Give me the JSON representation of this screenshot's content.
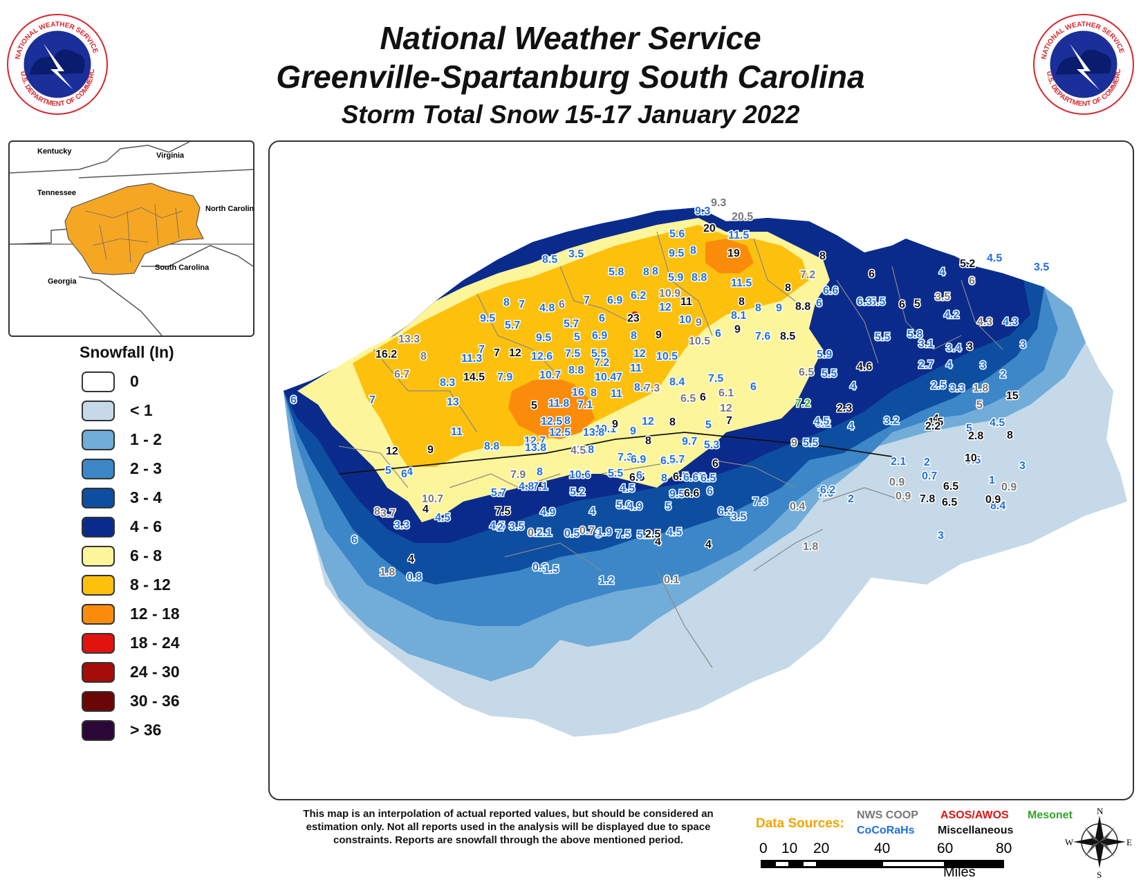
{
  "header": {
    "title_line1": "National Weather Service",
    "title_line2": "Greenville-Spartanburg South Carolina",
    "title_line3": "Storm Total Snow 15-17 January 2022"
  },
  "logo": {
    "text_top": "NATIONAL WEATHER SERVICE",
    "text_bottom": "U.S. DEPARTMENT OF COMMERCE",
    "icon": "nws-logo"
  },
  "inset_map": {
    "labels": [
      "Kentucky",
      "Virginia",
      "Tennessee",
      "North Carolina",
      "South Carolina",
      "Georgia"
    ],
    "highlight_color": "#f5a623"
  },
  "legend": {
    "title": "Snowfall (In)",
    "items": [
      {
        "label": "0",
        "color": "#ffffff"
      },
      {
        "label": "< 1",
        "color": "#c5d9e8"
      },
      {
        "label": "1 - 2",
        "color": "#72acd8"
      },
      {
        "label": "2 - 3",
        "color": "#3d87c8"
      },
      {
        "label": "3 - 4",
        "color": "#0d4ea0"
      },
      {
        "label": "4 - 6",
        "color": "#0b2b8c"
      },
      {
        "label": "6 - 8",
        "color": "#fdf59a"
      },
      {
        "label": "8 - 12",
        "color": "#fdc10d"
      },
      {
        "label": "12 - 18",
        "color": "#fb8c0b"
      },
      {
        "label": "18 - 24",
        "color": "#e0130f"
      },
      {
        "label": "24 - 30",
        "color": "#a40d0a"
      },
      {
        "label": "30 - 36",
        "color": "#6a0606"
      },
      {
        "label": "> 36",
        "color": "#2b0738"
      }
    ]
  },
  "map": {
    "report_colors": {
      "coop": "#777777",
      "cocorahs": "#1f6fe0",
      "asos": "#e0130f",
      "mesonet": "#2fa52a",
      "misc": "#111111"
    },
    "reports": [
      {
        "v": "9.3",
        "t": "coop"
      },
      {
        "v": "9.3",
        "t": "cocorahs"
      },
      {
        "v": "20.5",
        "t": "coop"
      },
      {
        "v": "20",
        "t": "misc"
      },
      {
        "v": "11.5",
        "t": "cocorahs"
      },
      {
        "v": "5.6",
        "t": "cocorahs"
      },
      {
        "v": "19",
        "t": "misc"
      },
      {
        "v": "9.5",
        "t": "cocorahs"
      },
      {
        "v": "8",
        "t": "cocorahs"
      },
      {
        "v": "8",
        "t": "cocorahs"
      },
      {
        "v": "3.5",
        "t": "cocorahs"
      },
      {
        "v": "8.5",
        "t": "cocorahs"
      },
      {
        "v": "8",
        "t": "misc"
      },
      {
        "v": "7.2",
        "t": "coop"
      },
      {
        "v": "6",
        "t": "misc"
      },
      {
        "v": "5.2",
        "t": "misc"
      },
      {
        "v": "4.5",
        "t": "cocorahs"
      },
      {
        "v": "3.5",
        "t": "cocorahs"
      },
      {
        "v": "4",
        "t": "cocorahs"
      },
      {
        "v": "5.8",
        "t": "cocorahs"
      },
      {
        "v": "8",
        "t": "cocorahs"
      },
      {
        "v": "5.9",
        "t": "cocorahs"
      },
      {
        "v": "8.8",
        "t": "cocorahs"
      },
      {
        "v": "11.5",
        "t": "cocorahs"
      },
      {
        "v": "8",
        "t": "misc"
      },
      {
        "v": "5.5",
        "t": "cocorahs"
      },
      {
        "v": "6",
        "t": "coop"
      },
      {
        "v": "6.6",
        "t": "cocorahs"
      },
      {
        "v": "6.2",
        "t": "cocorahs"
      },
      {
        "v": "10.9",
        "t": "coop"
      },
      {
        "v": "11",
        "t": "misc"
      },
      {
        "v": "8",
        "t": "misc"
      },
      {
        "v": "8",
        "t": "cocorahs"
      },
      {
        "v": "9",
        "t": "cocorahs"
      },
      {
        "v": "8.8",
        "t": "misc"
      },
      {
        "v": "6",
        "t": "cocorahs"
      },
      {
        "v": "6.3",
        "t": "cocorahs"
      },
      {
        "v": "6",
        "t": "misc"
      },
      {
        "v": "5",
        "t": "misc"
      },
      {
        "v": "3.5",
        "t": "coop"
      },
      {
        "v": "8",
        "t": "cocorahs"
      },
      {
        "v": "7",
        "t": "cocorahs"
      },
      {
        "v": "4.8",
        "t": "cocorahs"
      },
      {
        "v": "6",
        "t": "coop"
      },
      {
        "v": "7",
        "t": "cocorahs"
      },
      {
        "v": "6.9",
        "t": "cocorahs"
      },
      {
        "v": "12",
        "t": "cocorahs"
      },
      {
        "v": "23",
        "t": "misc"
      },
      {
        "v": "10",
        "t": "cocorahs"
      },
      {
        "v": "9",
        "t": "coop"
      },
      {
        "v": "8.1",
        "t": "cocorahs"
      },
      {
        "v": "4.2",
        "t": "cocorahs"
      },
      {
        "v": "4.3",
        "t": "coop"
      },
      {
        "v": "4.3",
        "t": "cocorahs"
      },
      {
        "v": "9.5",
        "t": "cocorahs"
      },
      {
        "v": "5.7",
        "t": "cocorahs"
      },
      {
        "v": "5.7",
        "t": "cocorahs"
      },
      {
        "v": "6",
        "t": "cocorahs"
      },
      {
        "v": "9",
        "t": "misc"
      },
      {
        "v": "6",
        "t": "cocorahs"
      },
      {
        "v": "9",
        "t": "misc"
      },
      {
        "v": "7.6",
        "t": "cocorahs"
      },
      {
        "v": "8.5",
        "t": "misc"
      },
      {
        "v": "5.5",
        "t": "cocorahs"
      },
      {
        "v": "5.8",
        "t": "cocorahs"
      },
      {
        "v": "3.1",
        "t": "cocorahs"
      },
      {
        "v": "3.4",
        "t": "cocorahs"
      },
      {
        "v": "3",
        "t": "misc"
      },
      {
        "v": "3",
        "t": "cocorahs"
      },
      {
        "v": "13.3",
        "t": "coop"
      },
      {
        "v": "8",
        "t": "coop"
      },
      {
        "v": "9.5",
        "t": "cocorahs"
      },
      {
        "v": "5",
        "t": "cocorahs"
      },
      {
        "v": "6.9",
        "t": "cocorahs"
      },
      {
        "v": "8",
        "t": "cocorahs"
      },
      {
        "v": "10.5",
        "t": "coop"
      },
      {
        "v": "16.2",
        "t": "misc"
      },
      {
        "v": "11.3",
        "t": "cocorahs"
      },
      {
        "v": "7",
        "t": "cocorahs"
      },
      {
        "v": "7",
        "t": "misc"
      },
      {
        "v": "12",
        "t": "misc"
      },
      {
        "v": "12.6",
        "t": "cocorahs"
      },
      {
        "v": "7.5",
        "t": "cocorahs"
      },
      {
        "v": "5.5",
        "t": "cocorahs"
      },
      {
        "v": "12",
        "t": "cocorahs"
      },
      {
        "v": "10.5",
        "t": "cocorahs"
      },
      {
        "v": "5.9",
        "t": "cocorahs"
      },
      {
        "v": "4.6",
        "t": "misc"
      },
      {
        "v": "2.7",
        "t": "cocorahs"
      },
      {
        "v": "4",
        "t": "cocorahs"
      },
      {
        "v": "3",
        "t": "cocorahs"
      },
      {
        "v": "2",
        "t": "cocorahs"
      },
      {
        "v": "6.7",
        "t": "coop"
      },
      {
        "v": "7.2",
        "t": "cocorahs"
      },
      {
        "v": "11",
        "t": "cocorahs"
      },
      {
        "v": "6.5",
        "t": "coop"
      },
      {
        "v": "5.5",
        "t": "cocorahs"
      },
      {
        "v": "14.5",
        "t": "misc"
      },
      {
        "v": "7.9",
        "t": "cocorahs"
      },
      {
        "v": "10.7",
        "t": "cocorahs"
      },
      {
        "v": "8.8",
        "t": "cocorahs"
      },
      {
        "v": "10.4",
        "t": "cocorahs"
      },
      {
        "v": "7",
        "t": "cocorahs"
      },
      {
        "v": "7.5",
        "t": "cocorahs"
      },
      {
        "v": "6",
        "t": "cocorahs"
      },
      {
        "v": "4",
        "t": "cocorahs"
      },
      {
        "v": "2.5",
        "t": "cocorahs"
      },
      {
        "v": "3.3",
        "t": "cocorahs"
      },
      {
        "v": "1.8",
        "t": "coop"
      },
      {
        "v": "15",
        "t": "misc"
      },
      {
        "v": "6",
        "t": "cocorahs"
      },
      {
        "v": "7",
        "t": "cocorahs"
      },
      {
        "v": "8.3",
        "t": "cocorahs"
      },
      {
        "v": "16",
        "t": "cocorahs"
      },
      {
        "v": "8",
        "t": "cocorahs"
      },
      {
        "v": "11",
        "t": "cocorahs"
      },
      {
        "v": "8.4",
        "t": "cocorahs"
      },
      {
        "v": "7.3",
        "t": "coop"
      },
      {
        "v": "8.4",
        "t": "cocorahs"
      },
      {
        "v": "6.5",
        "t": "coop"
      },
      {
        "v": "6",
        "t": "misc"
      },
      {
        "v": "6.1",
        "t": "coop"
      },
      {
        "v": "7.2",
        "t": "mesonet"
      },
      {
        "v": "2.3",
        "t": "misc"
      },
      {
        "v": "5",
        "t": "coop"
      },
      {
        "v": "13",
        "t": "cocorahs"
      },
      {
        "v": "11.8",
        "t": "cocorahs"
      },
      {
        "v": "7.1",
        "t": "cocorahs"
      },
      {
        "v": "5",
        "t": "misc"
      },
      {
        "v": "12",
        "t": "coop"
      },
      {
        "v": "12.5",
        "t": "cocorahs"
      },
      {
        "v": "8",
        "t": "cocorahs"
      },
      {
        "v": "10.1",
        "t": "cocorahs"
      },
      {
        "v": "9",
        "t": "misc"
      },
      {
        "v": "12",
        "t": "cocorahs"
      },
      {
        "v": "8",
        "t": "misc"
      },
      {
        "v": "5",
        "t": "cocorahs"
      },
      {
        "v": "7",
        "t": "misc"
      },
      {
        "v": "6.2",
        "t": "cocorahs"
      },
      {
        "v": "4.5",
        "t": "cocorahs"
      },
      {
        "v": "3.2",
        "t": "cocorahs"
      },
      {
        "v": "4",
        "t": "misc"
      },
      {
        "v": "1.5",
        "t": "misc"
      },
      {
        "v": "4.5",
        "t": "cocorahs"
      },
      {
        "v": "5",
        "t": "cocorahs"
      },
      {
        "v": "12.7",
        "t": "cocorahs"
      },
      {
        "v": "12.5",
        "t": "cocorahs"
      },
      {
        "v": "13.8",
        "t": "cocorahs"
      },
      {
        "v": "9",
        "t": "cocorahs"
      },
      {
        "v": "8",
        "t": "misc"
      },
      {
        "v": "9.7",
        "t": "cocorahs"
      },
      {
        "v": "4",
        "t": "cocorahs"
      },
      {
        "v": "2.2",
        "t": "misc"
      },
      {
        "v": "2.8",
        "t": "misc"
      },
      {
        "v": "8",
        "t": "misc"
      },
      {
        "v": "12",
        "t": "misc"
      },
      {
        "v": "9",
        "t": "misc"
      },
      {
        "v": "11",
        "t": "cocorahs"
      },
      {
        "v": "8.8",
        "t": "cocorahs"
      },
      {
        "v": "13.8",
        "t": "cocorahs"
      },
      {
        "v": "10.8",
        "t": "cocorahs"
      },
      {
        "v": "4.5",
        "t": "coop"
      },
      {
        "v": "5.3",
        "t": "cocorahs"
      },
      {
        "v": "9",
        "t": "coop"
      },
      {
        "v": "5.5",
        "t": "cocorahs"
      },
      {
        "v": "7.3",
        "t": "cocorahs"
      },
      {
        "v": "6.9",
        "t": "cocorahs"
      },
      {
        "v": "6.5",
        "t": "cocorahs"
      },
      {
        "v": "5.7",
        "t": "cocorahs"
      },
      {
        "v": "6",
        "t": "misc"
      },
      {
        "v": "2.1",
        "t": "cocorahs"
      },
      {
        "v": "2",
        "t": "cocorahs"
      },
      {
        "v": "3",
        "t": "cocorahs"
      },
      {
        "v": "0.5",
        "t": "cocorahs"
      },
      {
        "v": "10",
        "t": "misc"
      },
      {
        "v": "5",
        "t": "cocorahs"
      },
      {
        "v": "4",
        "t": "cocorahs"
      },
      {
        "v": "6",
        "t": "cocorahs"
      },
      {
        "v": "7.9",
        "t": "coop"
      },
      {
        "v": "8",
        "t": "cocorahs"
      },
      {
        "v": "10.6",
        "t": "cocorahs"
      },
      {
        "v": "5.5",
        "t": "cocorahs"
      },
      {
        "v": "6.5",
        "t": "misc"
      },
      {
        "v": "6.5",
        "t": "misc"
      },
      {
        "v": "5",
        "t": "cocorahs"
      },
      {
        "v": "0.9",
        "t": "coop"
      },
      {
        "v": "0.7",
        "t": "cocorahs"
      },
      {
        "v": "10.7",
        "t": "coop"
      },
      {
        "v": "5.7",
        "t": "cocorahs"
      },
      {
        "v": "7.1",
        "t": "cocorahs"
      },
      {
        "v": "4.5",
        "t": "cocorahs"
      },
      {
        "v": "6",
        "t": "cocorahs"
      },
      {
        "v": "8",
        "t": "cocorahs"
      },
      {
        "v": "6.6",
        "t": "cocorahs"
      },
      {
        "v": "6.5",
        "t": "cocorahs"
      },
      {
        "v": "7.6",
        "t": "cocorahs"
      },
      {
        "v": "0.9",
        "t": "coop"
      },
      {
        "v": "2",
        "t": "cocorahs"
      },
      {
        "v": "0.9",
        "t": "coop"
      },
      {
        "v": "1",
        "t": "cocorahs"
      },
      {
        "v": "9.5",
        "t": "cocorahs"
      },
      {
        "v": "5.2",
        "t": "cocorahs"
      },
      {
        "v": "4.8",
        "t": "cocorahs"
      },
      {
        "v": "6.6",
        "t": "misc"
      },
      {
        "v": "6",
        "t": "cocorahs"
      },
      {
        "v": "6.2",
        "t": "cocorahs"
      },
      {
        "v": "6.5",
        "t": "misc"
      },
      {
        "v": "7.8",
        "t": "misc"
      },
      {
        "v": "8.4",
        "t": "cocorahs"
      },
      {
        "v": "0.9",
        "t": "misc"
      },
      {
        "v": "8",
        "t": "coop"
      },
      {
        "v": "3.7",
        "t": "coop"
      },
      {
        "v": "7.5",
        "t": "misc"
      },
      {
        "v": "4.9",
        "t": "cocorahs"
      },
      {
        "v": "4",
        "t": "cocorahs"
      },
      {
        "v": "5.6",
        "t": "cocorahs"
      },
      {
        "v": "4.9",
        "t": "cocorahs"
      },
      {
        "v": "5",
        "t": "cocorahs"
      },
      {
        "v": "6.3",
        "t": "cocorahs"
      },
      {
        "v": "7.3",
        "t": "cocorahs"
      },
      {
        "v": "4",
        "t": "misc"
      },
      {
        "v": "4.5",
        "t": "cocorahs"
      },
      {
        "v": "3.3",
        "t": "cocorahs"
      },
      {
        "v": "4.5",
        "t": "cocorahs"
      },
      {
        "v": "3.5",
        "t": "cocorahs"
      },
      {
        "v": "0.5",
        "t": "coop"
      },
      {
        "v": "0.5",
        "t": "cocorahs"
      },
      {
        "v": "3",
        "t": "cocorahs"
      },
      {
        "v": "7.5",
        "t": "cocorahs"
      },
      {
        "v": "5.2",
        "t": "cocorahs"
      },
      {
        "v": "4",
        "t": "misc"
      },
      {
        "v": "4.5",
        "t": "cocorahs"
      },
      {
        "v": "4",
        "t": "misc"
      },
      {
        "v": "3.5",
        "t": "cocorahs"
      },
      {
        "v": "0.4",
        "t": "coop"
      },
      {
        "v": "6.5",
        "t": "misc"
      },
      {
        "v": "3",
        "t": "cocorahs"
      },
      {
        "v": "6",
        "t": "cocorahs"
      },
      {
        "v": "4",
        "t": "misc"
      },
      {
        "v": "2",
        "t": "cocorahs"
      },
      {
        "v": "2.1",
        "t": "cocorahs"
      },
      {
        "v": "0.7",
        "t": "coop"
      },
      {
        "v": "1.9",
        "t": "cocorahs"
      },
      {
        "v": "2.5",
        "t": "misc"
      },
      {
        "v": "1.8",
        "t": "coop"
      },
      {
        "v": "1.8",
        "t": "coop"
      },
      {
        "v": "0.8",
        "t": "cocorahs"
      },
      {
        "v": "0.3",
        "t": "cocorahs"
      },
      {
        "v": "1.5",
        "t": "cocorahs"
      },
      {
        "v": "0.1",
        "t": "coop"
      },
      {
        "v": "1.2",
        "t": "cocorahs"
      }
    ]
  },
  "footer": {
    "disclaimer": "This map is an interpolation of actual reported values, but should be considered an estimation only. Not all reports used in the analysis will be displayed due to space constraints. Reports are snowfall through the above mentioned period.",
    "data_sources_label": "Data Sources:",
    "sources": [
      {
        "label": "NWS COOP",
        "color": "#777777"
      },
      {
        "label": "ASOS/AWOS",
        "color": "#e0130f"
      },
      {
        "label": "Mesonet",
        "color": "#2fa52a"
      },
      {
        "label": "CoCoRaHs",
        "color": "#1f6fe0"
      },
      {
        "label": "Miscellaneous",
        "color": "#111111"
      }
    ],
    "scale": {
      "ticks": [
        "0",
        "10",
        "20",
        "40",
        "60",
        "80"
      ],
      "unit": "Miles"
    },
    "compass": {
      "n": "N",
      "s": "S",
      "e": "E",
      "w": "W"
    }
  }
}
